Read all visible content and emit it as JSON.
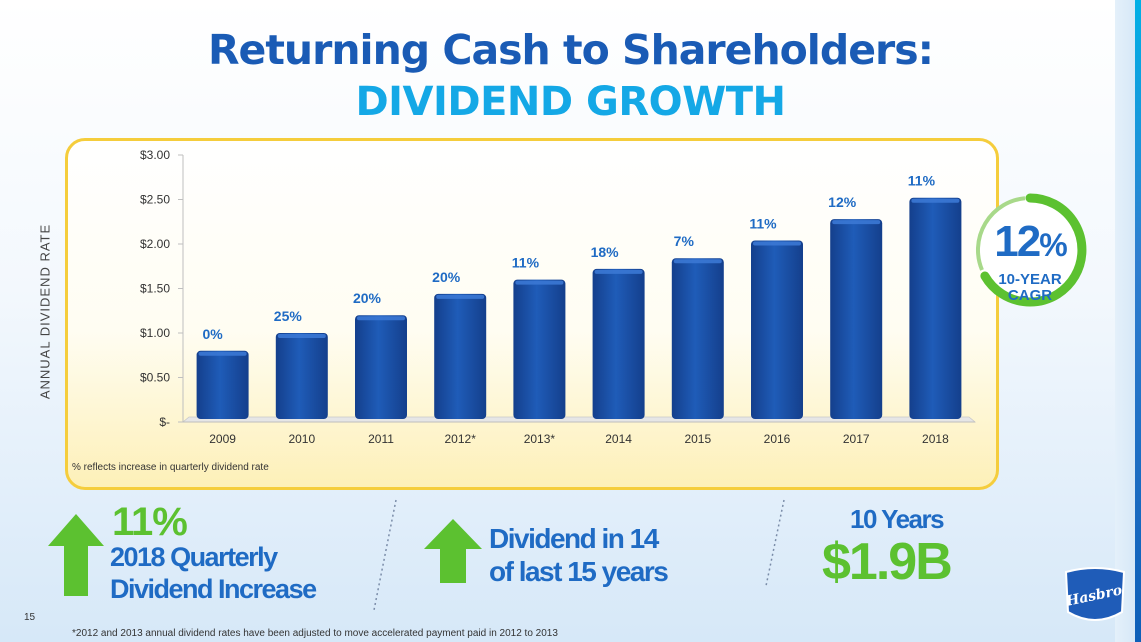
{
  "slide": {
    "title": "Returning Cash to Shareholders:",
    "subtitle": "DIVIDEND GROWTH",
    "page_number": "15",
    "footnote": "*2012 and 2013 annual dividend rates have been adjusted to move accelerated payment paid in 2012 to 2013",
    "note": "% reflects increase in quarterly dividend rate",
    "y_axis_title": "ANNUAL DIVIDEND RATE"
  },
  "cagr": {
    "value": "12",
    "symbol": "%",
    "line1": "10-YEAR",
    "line2": "CAGR"
  },
  "stats": {
    "left": {
      "value": "11%",
      "line1": "2018 Quarterly",
      "line2": "Dividend Increase"
    },
    "middle": {
      "line1": "Dividend in 14",
      "line2": "of last 15 years"
    },
    "right": {
      "line1": "10 Years",
      "value": "$1.9B"
    }
  },
  "logo_text": "Hasbro",
  "colors": {
    "bar": "#1f5cb8",
    "bar_dark": "#143f8c",
    "label": "#1f6bc4",
    "accent_green": "#5cc130",
    "panel_border": "#f5cd3c"
  },
  "chart_data": {
    "type": "bar",
    "categories": [
      "2009",
      "2010",
      "2011",
      "2012*",
      "2013*",
      "2014",
      "2015",
      "2016",
      "2017",
      "2018"
    ],
    "values": [
      0.8,
      1.0,
      1.2,
      1.44,
      1.6,
      1.72,
      1.84,
      2.04,
      2.28,
      2.52
    ],
    "data_labels": [
      "0%",
      "25%",
      "20%",
      "20%",
      "11%",
      "18%",
      "7%",
      "11%",
      "12%",
      "11%"
    ],
    "ylim": [
      0,
      3.0
    ],
    "yticks": [
      0,
      0.5,
      1.0,
      1.5,
      2.0,
      2.5,
      3.0
    ],
    "ytick_labels": [
      "$-",
      "$0.50",
      "$1.00",
      "$1.50",
      "$2.00",
      "$2.50",
      "$3.00"
    ],
    "ylabel": "ANNUAL DIVIDEND RATE",
    "legend": "none",
    "grid": false
  }
}
